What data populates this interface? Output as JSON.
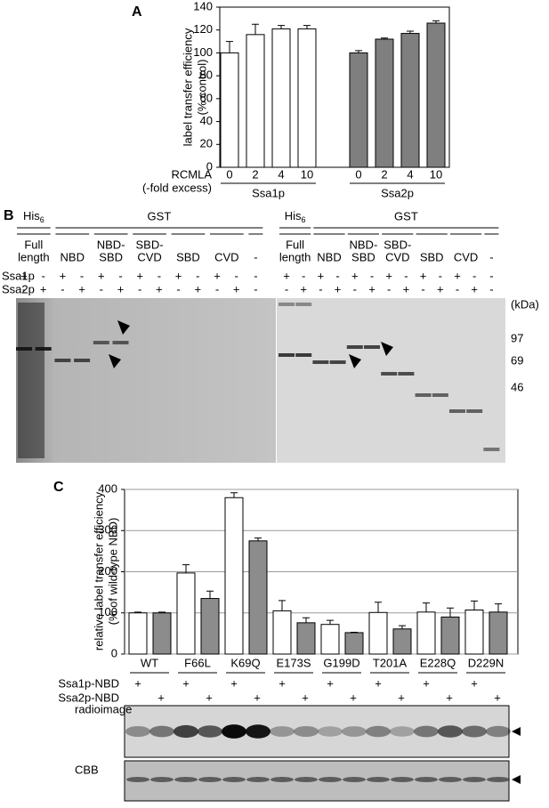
{
  "panels": [
    "A",
    "B",
    "C"
  ],
  "chart_data": [
    {
      "type": "bar",
      "ylabel": [
        "label transfer efficiency",
        "(% control)"
      ],
      "row_label": [
        "RCMLA",
        "(-fold excess)"
      ],
      "categories": [
        "0",
        "2",
        "4",
        "10"
      ],
      "series": [
        {
          "name": "Ssa1p",
          "color": "#ffffff",
          "values": [
            100,
            116,
            121,
            121
          ],
          "errors": [
            10,
            9,
            3,
            3
          ]
        },
        {
          "name": "Ssa2p",
          "color": "#7f7f7f",
          "values": [
            100,
            112,
            117,
            126
          ],
          "errors": [
            2,
            1,
            2,
            2
          ]
        }
      ],
      "ylim": [
        0,
        140
      ],
      "yticks": [
        0,
        20,
        40,
        60,
        80,
        100,
        120,
        140
      ],
      "grid": false
    },
    {
      "type": "bar",
      "ylabel": [
        "relative label transfer efficiency",
        "(% of wild-type NBD)"
      ],
      "categories": [
        "WT",
        "F66L",
        "K69Q",
        "E173S",
        "G199D",
        "T201A",
        "E228Q",
        "D229N"
      ],
      "series": [
        {
          "name": "Ssa1p-NBD",
          "color": "#ffffff",
          "values": [
            100,
            197,
            380,
            105,
            72,
            101,
            102,
            107
          ],
          "errors": [
            2,
            20,
            12,
            25,
            10,
            25,
            22,
            22
          ],
          "marks": [
            "+",
            "+",
            "+",
            "+",
            "+",
            "+",
            "+",
            "+"
          ]
        },
        {
          "name": "Ssa2p-NBD",
          "color": "#8c8c8c",
          "values": [
            100,
            135,
            275,
            76,
            52,
            61,
            90,
            102
          ],
          "errors": [
            2,
            18,
            7,
            12,
            1,
            8,
            22,
            20
          ],
          "marks": [
            "+",
            "+",
            "+",
            "+",
            "+",
            "+",
            "+",
            "+"
          ]
        }
      ],
      "ylim": [
        0,
        400
      ],
      "yticks": [
        0,
        100,
        200,
        300,
        400
      ],
      "grid": true
    }
  ],
  "gel_b": {
    "rows": [
      "Ssa1p",
      "Ssa2p"
    ],
    "kda": [
      "(kDa)",
      "97",
      "69",
      "46"
    ],
    "halves": [
      {
        "his": [
          "His",
          "6"
        ],
        "gst": "GST",
        "lanes": [
          [
            "Full",
            "length"
          ],
          [
            "NBD"
          ],
          [
            "NBD-",
            "SBD"
          ],
          [
            "SBD-",
            "CVD"
          ],
          [
            "SBD"
          ],
          [
            "CVD"
          ],
          [
            "-"
          ]
        ],
        "ssa1p": [
          "+",
          "-",
          "+",
          "-",
          "+",
          "-",
          "+",
          "-",
          "+",
          "-",
          "+",
          "-",
          "-"
        ],
        "ssa2p": [
          "-",
          "+",
          "-",
          "+",
          "-",
          "+",
          "-",
          "+",
          "-",
          "+",
          "-",
          "+",
          "-"
        ]
      },
      {
        "his": [
          "His",
          "6"
        ],
        "gst": "GST",
        "lanes": [
          [
            "Full",
            "length"
          ],
          [
            "NBD"
          ],
          [
            "NBD-",
            "SBD"
          ],
          [
            "SBD-",
            "CVD"
          ],
          [
            "SBD"
          ],
          [
            "CVD"
          ],
          [
            "-"
          ]
        ],
        "ssa1p": [
          "+",
          "-",
          "+",
          "-",
          "+",
          "-",
          "+",
          "-",
          "+",
          "-",
          "+",
          "-",
          "-"
        ],
        "ssa2p": [
          "-",
          "+",
          "-",
          "+",
          "-",
          "+",
          "-",
          "+",
          "-",
          "+",
          "-",
          "+",
          "-"
        ]
      }
    ]
  },
  "gel_c": {
    "labels": [
      "radioimage",
      "CBB"
    ]
  }
}
